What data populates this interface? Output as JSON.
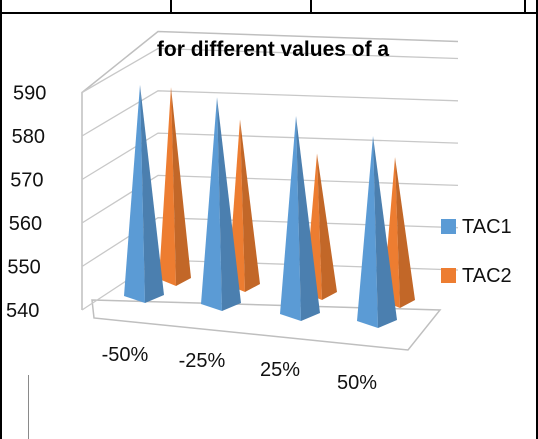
{
  "chart_data": {
    "type": "bar",
    "shape": "3d-pyramid",
    "title": "for different values of a",
    "categories": [
      "-50%",
      "-25%",
      "25%",
      "50%"
    ],
    "series": [
      {
        "name": "TAC1",
        "color": "#5b9bd5",
        "values": [
          586,
          585,
          583,
          580
        ]
      },
      {
        "name": "TAC2",
        "color": "#ed7d31",
        "values": [
          585,
          579,
          573,
          574
        ]
      }
    ],
    "ylim": [
      540,
      590
    ],
    "yticks": [
      "540",
      "550",
      "560",
      "570",
      "580",
      "590"
    ],
    "grid": true,
    "legend": "right"
  }
}
